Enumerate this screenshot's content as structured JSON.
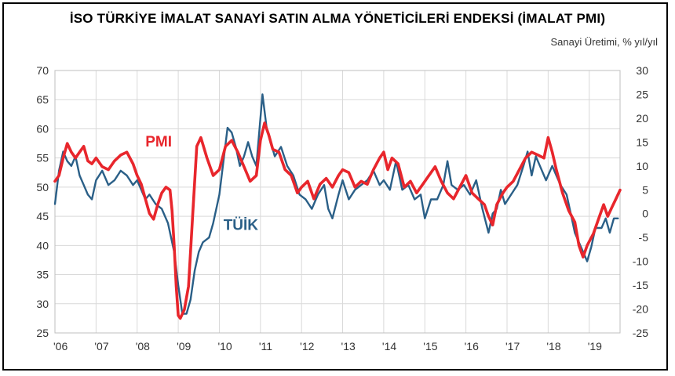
{
  "chart_data": {
    "type": "line",
    "title": "İSO TÜRKİYE İMALAT SANAYİ SATIN ALMA YÖNETİCİLERİ ENDEKSİ (İMALAT PMI)",
    "subtitle": "Sanayi Üretimi, % yıl/yıl",
    "x_labels": [
      "'06",
      "'07",
      "'08",
      "'09",
      "'10",
      "'11",
      "'12",
      "'13",
      "'14",
      "'15",
      "'16",
      "'17",
      "'18",
      "'19"
    ],
    "x_range": [
      2006.0,
      2019.75
    ],
    "y_left": {
      "min": 25,
      "max": 70,
      "ticks": [
        "25",
        "30",
        "35",
        "40",
        "45",
        "50",
        "55",
        "60",
        "65",
        "70"
      ]
    },
    "y_right": {
      "min": -25,
      "max": 30,
      "ticks": [
        "-25",
        "-20",
        "-15",
        "-10",
        "-5",
        "0",
        "5",
        "10",
        "15",
        "20",
        "25",
        "30"
      ]
    },
    "grid": true,
    "series": [
      {
        "name": "PMI",
        "axis": "left",
        "color": "#e8262c",
        "points": [
          [
            2006.0,
            51
          ],
          [
            2006.1,
            52
          ],
          [
            2006.2,
            55
          ],
          [
            2006.3,
            57.5
          ],
          [
            2006.4,
            56
          ],
          [
            2006.5,
            55
          ],
          [
            2006.6,
            56
          ],
          [
            2006.7,
            57
          ],
          [
            2006.8,
            54.5
          ],
          [
            2006.9,
            54
          ],
          [
            2007.0,
            55
          ],
          [
            2007.15,
            53.5
          ],
          [
            2007.3,
            53
          ],
          [
            2007.45,
            54.5
          ],
          [
            2007.6,
            55.5
          ],
          [
            2007.75,
            56
          ],
          [
            2007.9,
            54
          ],
          [
            2008.0,
            52
          ],
          [
            2008.1,
            50.5
          ],
          [
            2008.2,
            48
          ],
          [
            2008.3,
            45.5
          ],
          [
            2008.4,
            44.5
          ],
          [
            2008.5,
            47
          ],
          [
            2008.6,
            49
          ],
          [
            2008.7,
            50
          ],
          [
            2008.8,
            49.5
          ],
          [
            2008.85,
            46
          ],
          [
            2008.9,
            40
          ],
          [
            2008.95,
            33
          ],
          [
            2009.0,
            28
          ],
          [
            2009.05,
            27.5
          ],
          [
            2009.15,
            29
          ],
          [
            2009.25,
            33
          ],
          [
            2009.35,
            45
          ],
          [
            2009.45,
            57
          ],
          [
            2009.55,
            58.5
          ],
          [
            2009.7,
            55
          ],
          [
            2009.85,
            52
          ],
          [
            2010.0,
            53
          ],
          [
            2010.15,
            57
          ],
          [
            2010.3,
            58
          ],
          [
            2010.45,
            56
          ],
          [
            2010.6,
            53.5
          ],
          [
            2010.75,
            51
          ],
          [
            2010.9,
            52
          ],
          [
            2011.0,
            58
          ],
          [
            2011.1,
            61
          ],
          [
            2011.2,
            59
          ],
          [
            2011.3,
            56.5
          ],
          [
            2011.45,
            56
          ],
          [
            2011.6,
            53
          ],
          [
            2011.75,
            52
          ],
          [
            2011.9,
            49
          ],
          [
            2012.0,
            50
          ],
          [
            2012.15,
            51
          ],
          [
            2012.3,
            48
          ],
          [
            2012.45,
            50.5
          ],
          [
            2012.6,
            51.5
          ],
          [
            2012.75,
            50
          ],
          [
            2012.9,
            52
          ],
          [
            2013.0,
            53
          ],
          [
            2013.15,
            52.5
          ],
          [
            2013.3,
            50
          ],
          [
            2013.45,
            51
          ],
          [
            2013.6,
            50.5
          ],
          [
            2013.75,
            53
          ],
          [
            2013.9,
            55
          ],
          [
            2014.0,
            56
          ],
          [
            2014.1,
            53
          ],
          [
            2014.2,
            55
          ],
          [
            2014.35,
            54
          ],
          [
            2014.5,
            50
          ],
          [
            2014.65,
            51
          ],
          [
            2014.8,
            49
          ],
          [
            2014.95,
            50.5
          ],
          [
            2015.1,
            52
          ],
          [
            2015.25,
            53.5
          ],
          [
            2015.4,
            51
          ],
          [
            2015.55,
            49
          ],
          [
            2015.7,
            48
          ],
          [
            2015.85,
            50
          ],
          [
            2016.0,
            52
          ],
          [
            2016.15,
            49
          ],
          [
            2016.3,
            48
          ],
          [
            2016.45,
            47
          ],
          [
            2016.55,
            45
          ],
          [
            2016.65,
            43.5
          ],
          [
            2016.75,
            47
          ],
          [
            2016.9,
            49
          ],
          [
            2017.0,
            50
          ],
          [
            2017.15,
            51
          ],
          [
            2017.3,
            53
          ],
          [
            2017.45,
            55
          ],
          [
            2017.6,
            56
          ],
          [
            2017.75,
            55.5
          ],
          [
            2017.9,
            55
          ],
          [
            2018.0,
            58.5
          ],
          [
            2018.1,
            56
          ],
          [
            2018.2,
            53
          ],
          [
            2018.35,
            49
          ],
          [
            2018.5,
            46
          ],
          [
            2018.65,
            44
          ],
          [
            2018.75,
            40
          ],
          [
            2018.85,
            38
          ],
          [
            2018.95,
            40
          ],
          [
            2019.1,
            42
          ],
          [
            2019.25,
            45
          ],
          [
            2019.35,
            47
          ],
          [
            2019.45,
            45
          ],
          [
            2019.55,
            46.5
          ],
          [
            2019.65,
            48
          ],
          [
            2019.75,
            49.5
          ]
        ]
      },
      {
        "name": "TÜİK",
        "axis": "right",
        "color": "#2a5f87",
        "points": [
          [
            2006.0,
            2
          ],
          [
            2006.1,
            9
          ],
          [
            2006.2,
            13
          ],
          [
            2006.3,
            11
          ],
          [
            2006.4,
            10
          ],
          [
            2006.5,
            12
          ],
          [
            2006.6,
            8
          ],
          [
            2006.7,
            6
          ],
          [
            2006.8,
            4
          ],
          [
            2006.9,
            3
          ],
          [
            2007.0,
            7
          ],
          [
            2007.15,
            9
          ],
          [
            2007.3,
            6
          ],
          [
            2007.45,
            7
          ],
          [
            2007.6,
            9
          ],
          [
            2007.75,
            8
          ],
          [
            2007.9,
            6
          ],
          [
            2008.0,
            7
          ],
          [
            2008.1,
            5
          ],
          [
            2008.2,
            3
          ],
          [
            2008.3,
            4
          ],
          [
            2008.45,
            2
          ],
          [
            2008.6,
            1
          ],
          [
            2008.75,
            -2
          ],
          [
            2008.9,
            -8
          ],
          [
            2009.0,
            -15
          ],
          [
            2009.1,
            -21
          ],
          [
            2009.2,
            -21
          ],
          [
            2009.3,
            -18
          ],
          [
            2009.4,
            -12
          ],
          [
            2009.5,
            -8
          ],
          [
            2009.6,
            -6
          ],
          [
            2009.75,
            -5
          ],
          [
            2009.85,
            -2
          ],
          [
            2010.0,
            4
          ],
          [
            2010.1,
            11
          ],
          [
            2010.2,
            18
          ],
          [
            2010.3,
            17
          ],
          [
            2010.4,
            14
          ],
          [
            2010.5,
            10
          ],
          [
            2010.6,
            12
          ],
          [
            2010.7,
            15
          ],
          [
            2010.8,
            12
          ],
          [
            2010.9,
            10
          ],
          [
            2011.0,
            20
          ],
          [
            2011.05,
            25
          ],
          [
            2011.15,
            18
          ],
          [
            2011.25,
            15
          ],
          [
            2011.35,
            12
          ],
          [
            2011.5,
            14
          ],
          [
            2011.65,
            10
          ],
          [
            2011.8,
            8
          ],
          [
            2011.95,
            4
          ],
          [
            2012.1,
            3
          ],
          [
            2012.25,
            1
          ],
          [
            2012.4,
            4
          ],
          [
            2012.55,
            6
          ],
          [
            2012.65,
            1
          ],
          [
            2012.75,
            -1
          ],
          [
            2012.9,
            4
          ],
          [
            2013.0,
            7
          ],
          [
            2013.15,
            3
          ],
          [
            2013.3,
            5
          ],
          [
            2013.45,
            6
          ],
          [
            2013.6,
            7
          ],
          [
            2013.75,
            9
          ],
          [
            2013.9,
            6
          ],
          [
            2014.0,
            7
          ],
          [
            2014.15,
            5
          ],
          [
            2014.3,
            11
          ],
          [
            2014.45,
            5
          ],
          [
            2014.6,
            6
          ],
          [
            2014.75,
            3
          ],
          [
            2014.9,
            4
          ],
          [
            2015.0,
            -1
          ],
          [
            2015.15,
            3
          ],
          [
            2015.3,
            3
          ],
          [
            2015.45,
            6
          ],
          [
            2015.55,
            11
          ],
          [
            2015.65,
            6
          ],
          [
            2015.8,
            5
          ],
          [
            2015.95,
            6
          ],
          [
            2016.1,
            4
          ],
          [
            2016.25,
            7
          ],
          [
            2016.4,
            1
          ],
          [
            2016.55,
            -4
          ],
          [
            2016.65,
            0
          ],
          [
            2016.75,
            1
          ],
          [
            2016.85,
            5
          ],
          [
            2016.95,
            2
          ],
          [
            2017.1,
            4
          ],
          [
            2017.25,
            6
          ],
          [
            2017.4,
            10
          ],
          [
            2017.5,
            13
          ],
          [
            2017.6,
            8
          ],
          [
            2017.7,
            12
          ],
          [
            2017.8,
            10
          ],
          [
            2017.95,
            7
          ],
          [
            2018.1,
            10
          ],
          [
            2018.2,
            8
          ],
          [
            2018.3,
            6
          ],
          [
            2018.45,
            4
          ],
          [
            2018.55,
            0
          ],
          [
            2018.65,
            -4
          ],
          [
            2018.75,
            -6
          ],
          [
            2018.85,
            -8
          ],
          [
            2018.95,
            -10
          ],
          [
            2019.05,
            -7
          ],
          [
            2019.15,
            -3
          ],
          [
            2019.3,
            -3
          ],
          [
            2019.4,
            -1
          ],
          [
            2019.5,
            -4
          ],
          [
            2019.6,
            -1
          ],
          [
            2019.7,
            -1
          ]
        ]
      }
    ]
  }
}
